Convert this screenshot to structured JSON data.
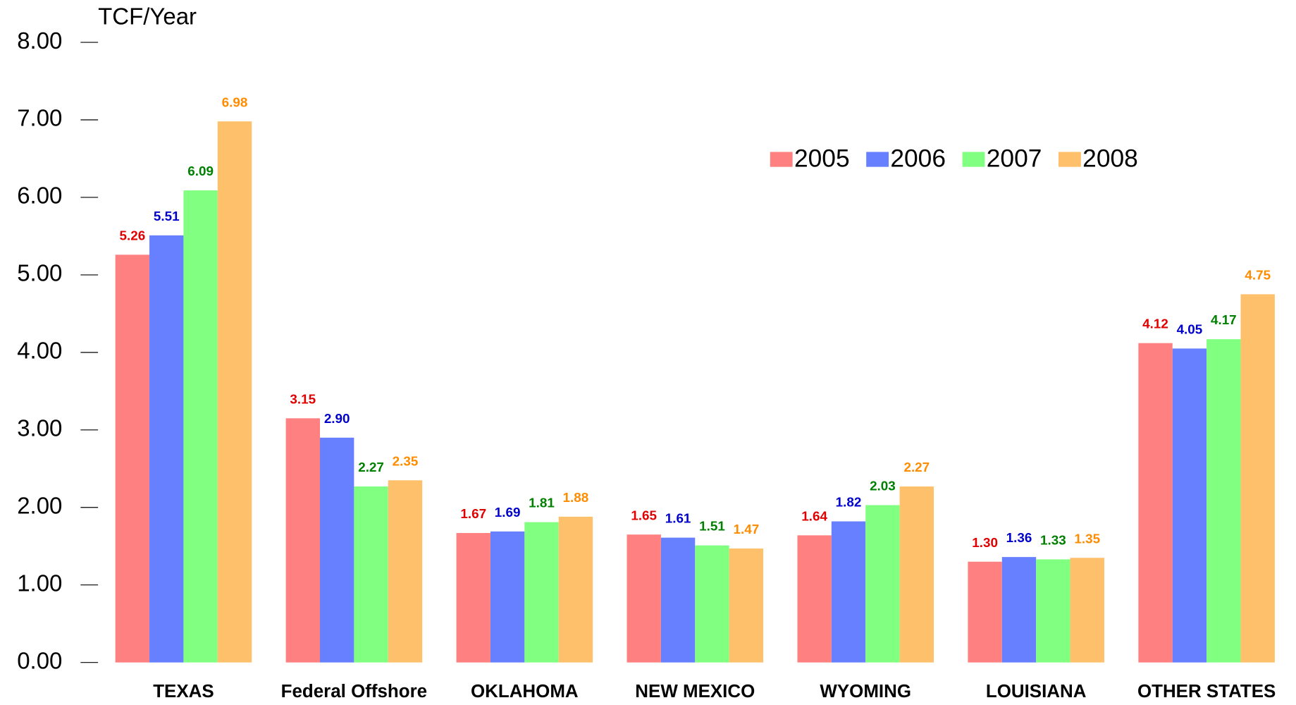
{
  "chart_data": {
    "type": "bar",
    "y_axis_label": "TCF/Year",
    "categories": [
      "TEXAS",
      "Federal Offshore",
      "OKLAHOMA",
      "NEW MEXICO",
      "WYOMING",
      "LOUISIANA",
      "OTHER STATES"
    ],
    "series": [
      {
        "name": "2005",
        "color": "#ff8080",
        "label_color": "#e00000",
        "values": [
          5.26,
          3.15,
          1.67,
          1.65,
          1.64,
          1.3,
          4.12
        ],
        "value_labels": [
          "5.26",
          "3.15",
          "1.67",
          "1.65",
          "1.64",
          "1.30",
          "4.12"
        ]
      },
      {
        "name": "2006",
        "color": "#6680ff",
        "label_color": "#0000cc",
        "values": [
          5.51,
          2.9,
          1.69,
          1.61,
          1.82,
          1.36,
          4.05
        ],
        "value_labels": [
          "5.51",
          "2.90",
          "1.69",
          "1.61",
          "1.82",
          "1.36",
          "4.05"
        ]
      },
      {
        "name": "2007",
        "color": "#80ff80",
        "label_color": "#008000",
        "values": [
          6.09,
          2.27,
          1.81,
          1.51,
          2.03,
          1.33,
          4.17
        ],
        "value_labels": [
          "6.09",
          "2.27",
          "1.81",
          "1.51",
          "2.03",
          "1.33",
          "4.17"
        ]
      },
      {
        "name": "2008",
        "color": "#ffc06b",
        "label_color": "#ff8c00",
        "values": [
          6.98,
          2.35,
          1.88,
          1.47,
          2.27,
          1.35,
          4.75
        ],
        "value_labels": [
          "6.98",
          "2.35",
          "1.88",
          "1.47",
          "2.27",
          "1.35",
          "4.75"
        ]
      }
    ],
    "ylim": [
      0,
      8
    ],
    "yticks": [
      {
        "value": 0,
        "label": "0.00"
      },
      {
        "value": 1,
        "label": "1.00"
      },
      {
        "value": 2,
        "label": "2.00"
      },
      {
        "value": 3,
        "label": "3.00"
      },
      {
        "value": 4,
        "label": "4.00"
      },
      {
        "value": 5,
        "label": "5.00"
      },
      {
        "value": 6,
        "label": "6.00"
      },
      {
        "value": 7,
        "label": "7.00"
      },
      {
        "value": 8,
        "label": "8.00"
      }
    ],
    "legend": "upper right"
  }
}
